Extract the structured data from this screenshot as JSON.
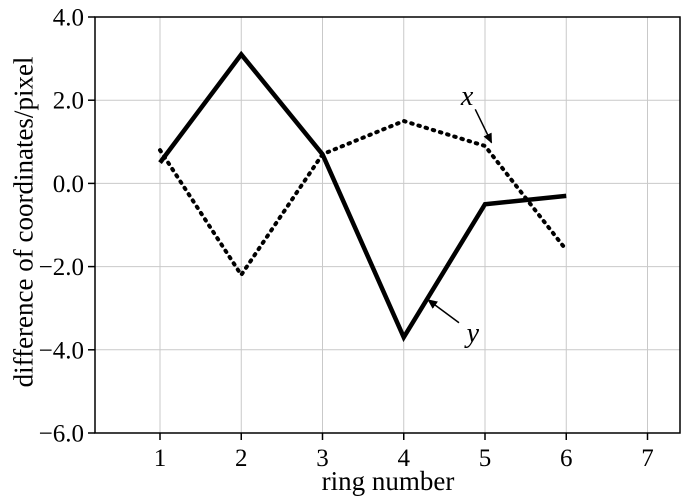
{
  "figure": {
    "background": "#ffffff",
    "line_color": "#000000"
  },
  "chart_data": {
    "type": "line",
    "title": "",
    "xlabel": "ring number",
    "ylabel": "difference of coordinates/pixel",
    "x": [
      1,
      2,
      3,
      4,
      5,
      6
    ],
    "series": [
      {
        "name": "x",
        "style": "dotted",
        "color": "#000000",
        "values": [
          0.8,
          -2.2,
          0.7,
          1.5,
          0.9,
          -1.6
        ]
      },
      {
        "name": "y",
        "style": "solid",
        "color": "#000000",
        "values": [
          0.5,
          3.1,
          0.7,
          -3.7,
          -0.5,
          -0.3
        ]
      }
    ],
    "xlim": [
      0.2,
      7.4
    ],
    "ylim": [
      -6.0,
      4.0
    ],
    "xticks": [
      1,
      2,
      3,
      4,
      5,
      6,
      7
    ],
    "yticks": [
      -6.0,
      -4.0,
      -2.0,
      0.0,
      2.0,
      4.0
    ],
    "grid": true,
    "grid_color": "#c9c9c9",
    "legend": "none",
    "annotations": [
      {
        "text": "x",
        "tx": 4.78,
        "ty": 2.1,
        "ax1": 4.88,
        "ay1": 1.78,
        "ax2": 5.08,
        "ay2": 0.98
      },
      {
        "text": "y",
        "tx": 4.85,
        "ty": -3.6,
        "ax1": 4.68,
        "ay1": -3.35,
        "ax2": 4.3,
        "ay2": -2.8
      }
    ]
  }
}
